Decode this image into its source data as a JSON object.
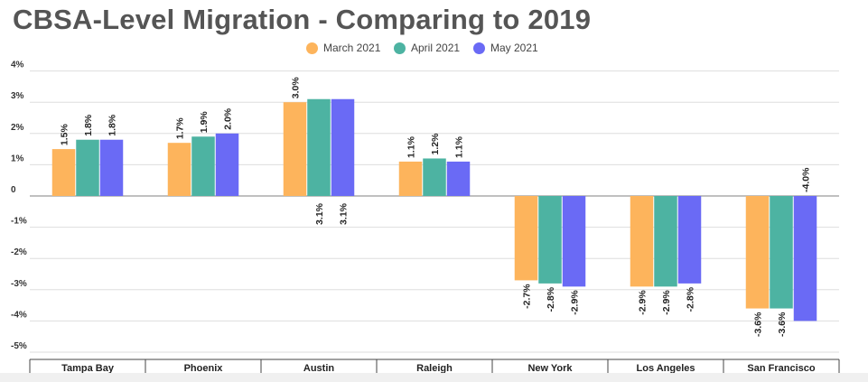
{
  "chart_data": {
    "type": "bar",
    "title": "CBSA-Level Migration - Comparing to 2019",
    "categories": [
      "Tampa Bay",
      "Phoenix",
      "Austin",
      "Raleigh",
      "New York",
      "Los Angeles",
      "San Francisco"
    ],
    "series": [
      {
        "name": "March 2021",
        "color": "#FDB45C",
        "values": [
          1.5,
          1.7,
          3.0,
          1.1,
          -2.7,
          -2.9,
          -3.6
        ],
        "labels": [
          "1.5%",
          "1.7%",
          "3.0%",
          "1.1%",
          "-2.7%",
          "-2.9%",
          "-3.6%"
        ]
      },
      {
        "name": "April 2021",
        "color": "#4DB3A2",
        "values": [
          1.8,
          1.9,
          3.1,
          1.2,
          -2.8,
          -2.9,
          -3.6
        ],
        "labels": [
          "1.8%",
          "1.9%",
          "3.1%",
          "1.2%",
          "-2.8%",
          "-2.9%",
          "-3.6%"
        ]
      },
      {
        "name": "May 2021",
        "color": "#6A6AF5",
        "values": [
          1.8,
          2.0,
          3.1,
          1.1,
          -2.9,
          -2.8,
          -4.0
        ],
        "labels": [
          "1.8%",
          "2.0%",
          "3.1%",
          "1.1%",
          "-2.9%",
          "-2.8%",
          "-4.0%"
        ]
      }
    ],
    "y_ticks": [
      4,
      3,
      2,
      1,
      0,
      -1,
      -2,
      -3,
      -4,
      -5
    ],
    "y_tick_labels": [
      "4%",
      "3%",
      "2%",
      "1%",
      "0",
      "-1%",
      "-2%",
      "-3%",
      "-4%",
      "-5%"
    ],
    "ylim": [
      -5,
      4
    ],
    "xlabel": "",
    "ylabel": "",
    "grid": true,
    "legend": "top-center"
  }
}
